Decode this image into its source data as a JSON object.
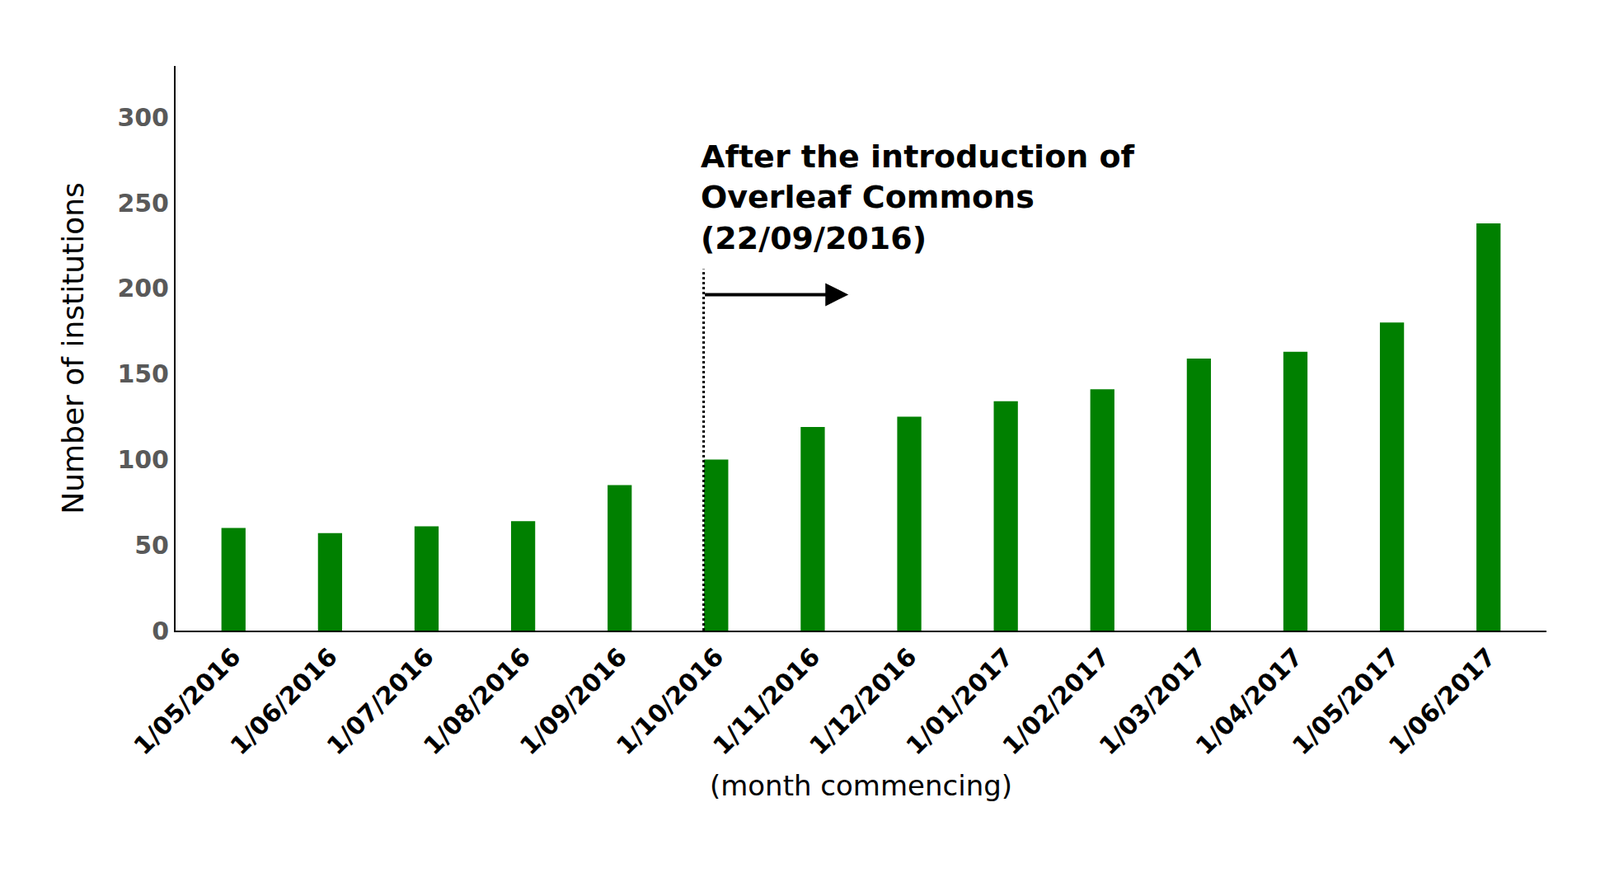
{
  "chart_data": {
    "type": "bar",
    "categories": [
      "1/05/2016",
      "1/06/2016",
      "1/07/2016",
      "1/08/2016",
      "1/09/2016",
      "1/10/2016",
      "1/11/2016",
      "1/12/2016",
      "1/01/2017",
      "1/02/2017",
      "1/03/2017",
      "1/04/2017",
      "1/05/2017",
      "1/06/2017"
    ],
    "values": [
      60,
      57,
      61,
      64,
      85,
      100,
      119,
      125,
      134,
      141,
      159,
      163,
      180,
      238
    ],
    "color": "#008000",
    "x_label": "(month commencing)",
    "y_label": "Number of institutions",
    "ylim": [
      0,
      330
    ],
    "yticks": [
      0,
      50,
      100,
      150,
      200,
      250,
      300
    ],
    "grid": false,
    "annotation": [
      "After the introduction of",
      "Overleaf Commons",
      "(22/09/2016)"
    ]
  }
}
